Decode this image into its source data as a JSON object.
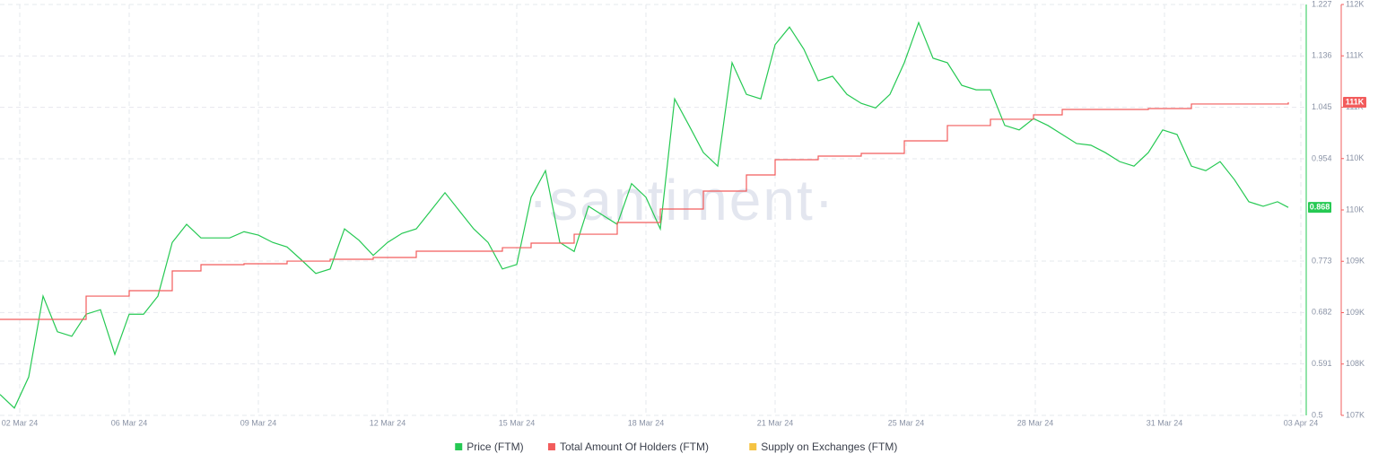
{
  "chart_data": {
    "type": "line",
    "watermark": "·santiment·",
    "x": [
      0,
      8,
      16,
      24,
      32,
      40,
      48,
      56,
      64,
      72,
      80,
      88,
      96,
      104,
      112,
      120,
      128,
      136,
      144,
      152,
      160,
      168,
      176,
      184,
      192,
      200,
      208,
      216,
      224,
      232,
      240,
      248,
      256,
      264,
      272,
      280,
      288,
      296,
      304,
      312,
      320,
      328,
      336,
      344,
      352,
      360,
      368,
      376,
      384,
      392,
      400,
      408,
      416,
      424,
      432,
      440,
      448,
      456,
      464,
      472,
      480,
      488,
      496,
      504,
      512,
      520,
      528,
      536,
      544,
      552,
      560,
      568,
      576,
      584,
      592,
      600,
      608,
      616,
      624,
      632,
      640,
      648,
      656,
      664,
      672,
      680,
      688,
      696,
      704,
      712,
      718
    ],
    "xlim": [
      0,
      728
    ],
    "xticks": [
      {
        "value": 11,
        "label": "02 Mar 24"
      },
      {
        "value": 72,
        "label": "06 Mar 24"
      },
      {
        "value": 144,
        "label": "09 Mar 24"
      },
      {
        "value": 216,
        "label": "12 Mar 24"
      },
      {
        "value": 288,
        "label": "15 Mar 24"
      },
      {
        "value": 360,
        "label": "18 Mar 24"
      },
      {
        "value": 432,
        "label": "21 Mar 24"
      },
      {
        "value": 505,
        "label": "25 Mar 24"
      },
      {
        "value": 577,
        "label": "28 Mar 24"
      },
      {
        "value": 649,
        "label": "31 Mar 24"
      },
      {
        "value": 725,
        "label": "03 Apr 24"
      }
    ],
    "ylim": [
      0.5,
      1.227
    ],
    "yticks": [
      0.5,
      0.591,
      0.682,
      0.773,
      0.954,
      1.045,
      1.136,
      1.227
    ],
    "y2lim": [
      107400,
      112040
    ],
    "y2ticks": [
      {
        "value": 107400,
        "label": "107K"
      },
      {
        "value": 107980,
        "label": "108K"
      },
      {
        "value": 108560,
        "label": "109K"
      },
      {
        "value": 109140,
        "label": "109K"
      },
      {
        "value": 109720,
        "label": "110K"
      },
      {
        "value": 110300,
        "label": "110K"
      },
      {
        "value": 110880,
        "label": "111K"
      },
      {
        "value": 111460,
        "label": "111K"
      },
      {
        "value": 112040,
        "label": "112K"
      }
    ],
    "grid": true,
    "series": [
      {
        "name": "Price (FTM)",
        "color": "#26c953",
        "values": [
          0.537,
          0.513,
          0.568,
          0.711,
          0.648,
          0.64,
          0.679,
          0.687,
          0.608,
          0.679,
          0.679,
          0.711,
          0.806,
          0.838,
          0.814,
          0.814,
          0.814,
          0.825,
          0.819,
          0.806,
          0.798,
          0.775,
          0.751,
          0.759,
          0.83,
          0.81,
          0.783,
          0.806,
          0.822,
          0.83,
          0.862,
          0.894,
          0.862,
          0.83,
          0.806,
          0.759,
          0.767,
          0.886,
          0.933,
          0.806,
          0.79,
          0.87,
          0.854,
          0.838,
          0.91,
          0.886,
          0.83,
          1.06,
          1.013,
          0.965,
          0.941,
          1.124,
          1.068,
          1.06,
          1.156,
          1.187,
          1.148,
          1.092,
          1.1,
          1.068,
          1.052,
          1.044,
          1.068,
          1.124,
          1.195,
          1.132,
          1.124,
          1.084,
          1.076,
          1.076,
          1.013,
          1.005,
          1.025,
          1.013,
          0.997,
          0.981,
          0.978,
          0.965,
          0.949,
          0.941,
          0.965,
          1.005,
          0.997,
          0.941,
          0.933,
          0.949,
          0.917,
          0.878,
          0.87,
          0.878,
          0.868
        ]
      },
      {
        "name": "Total Amount Of Holders (FTM)",
        "color": "#f25c5c",
        "axis": "y2",
        "step": true,
        "end_label": "111K",
        "values": [
          108484,
          108484,
          108484,
          108484,
          108484,
          108484,
          108747,
          108747,
          108747,
          108808,
          108808,
          108808,
          109031,
          109031,
          109102,
          109102,
          109102,
          109112,
          109112,
          109112,
          109142,
          109142,
          109142,
          109163,
          109163,
          109163,
          109183,
          109183,
          109183,
          109254,
          109254,
          109254,
          109254,
          109254,
          109254,
          109294,
          109294,
          109345,
          109345,
          109345,
          109446,
          109446,
          109446,
          109578,
          109578,
          109578,
          109730,
          109730,
          109730,
          109933,
          109933,
          109933,
          110115,
          110115,
          110287,
          110287,
          110287,
          110328,
          110328,
          110328,
          110358,
          110358,
          110358,
          110500,
          110500,
          110500,
          110673,
          110673,
          110673,
          110744,
          110744,
          110744,
          110794,
          110794,
          110855,
          110855,
          110855,
          110855,
          110855,
          110855,
          110865,
          110865,
          110865,
          110916,
          110916,
          110916,
          110916,
          110916,
          110916,
          110916,
          110936
        ]
      }
    ],
    "extra_legend": [
      {
        "name": "Supply on Exchanges (FTM)",
        "color": "#f5c342"
      }
    ]
  }
}
